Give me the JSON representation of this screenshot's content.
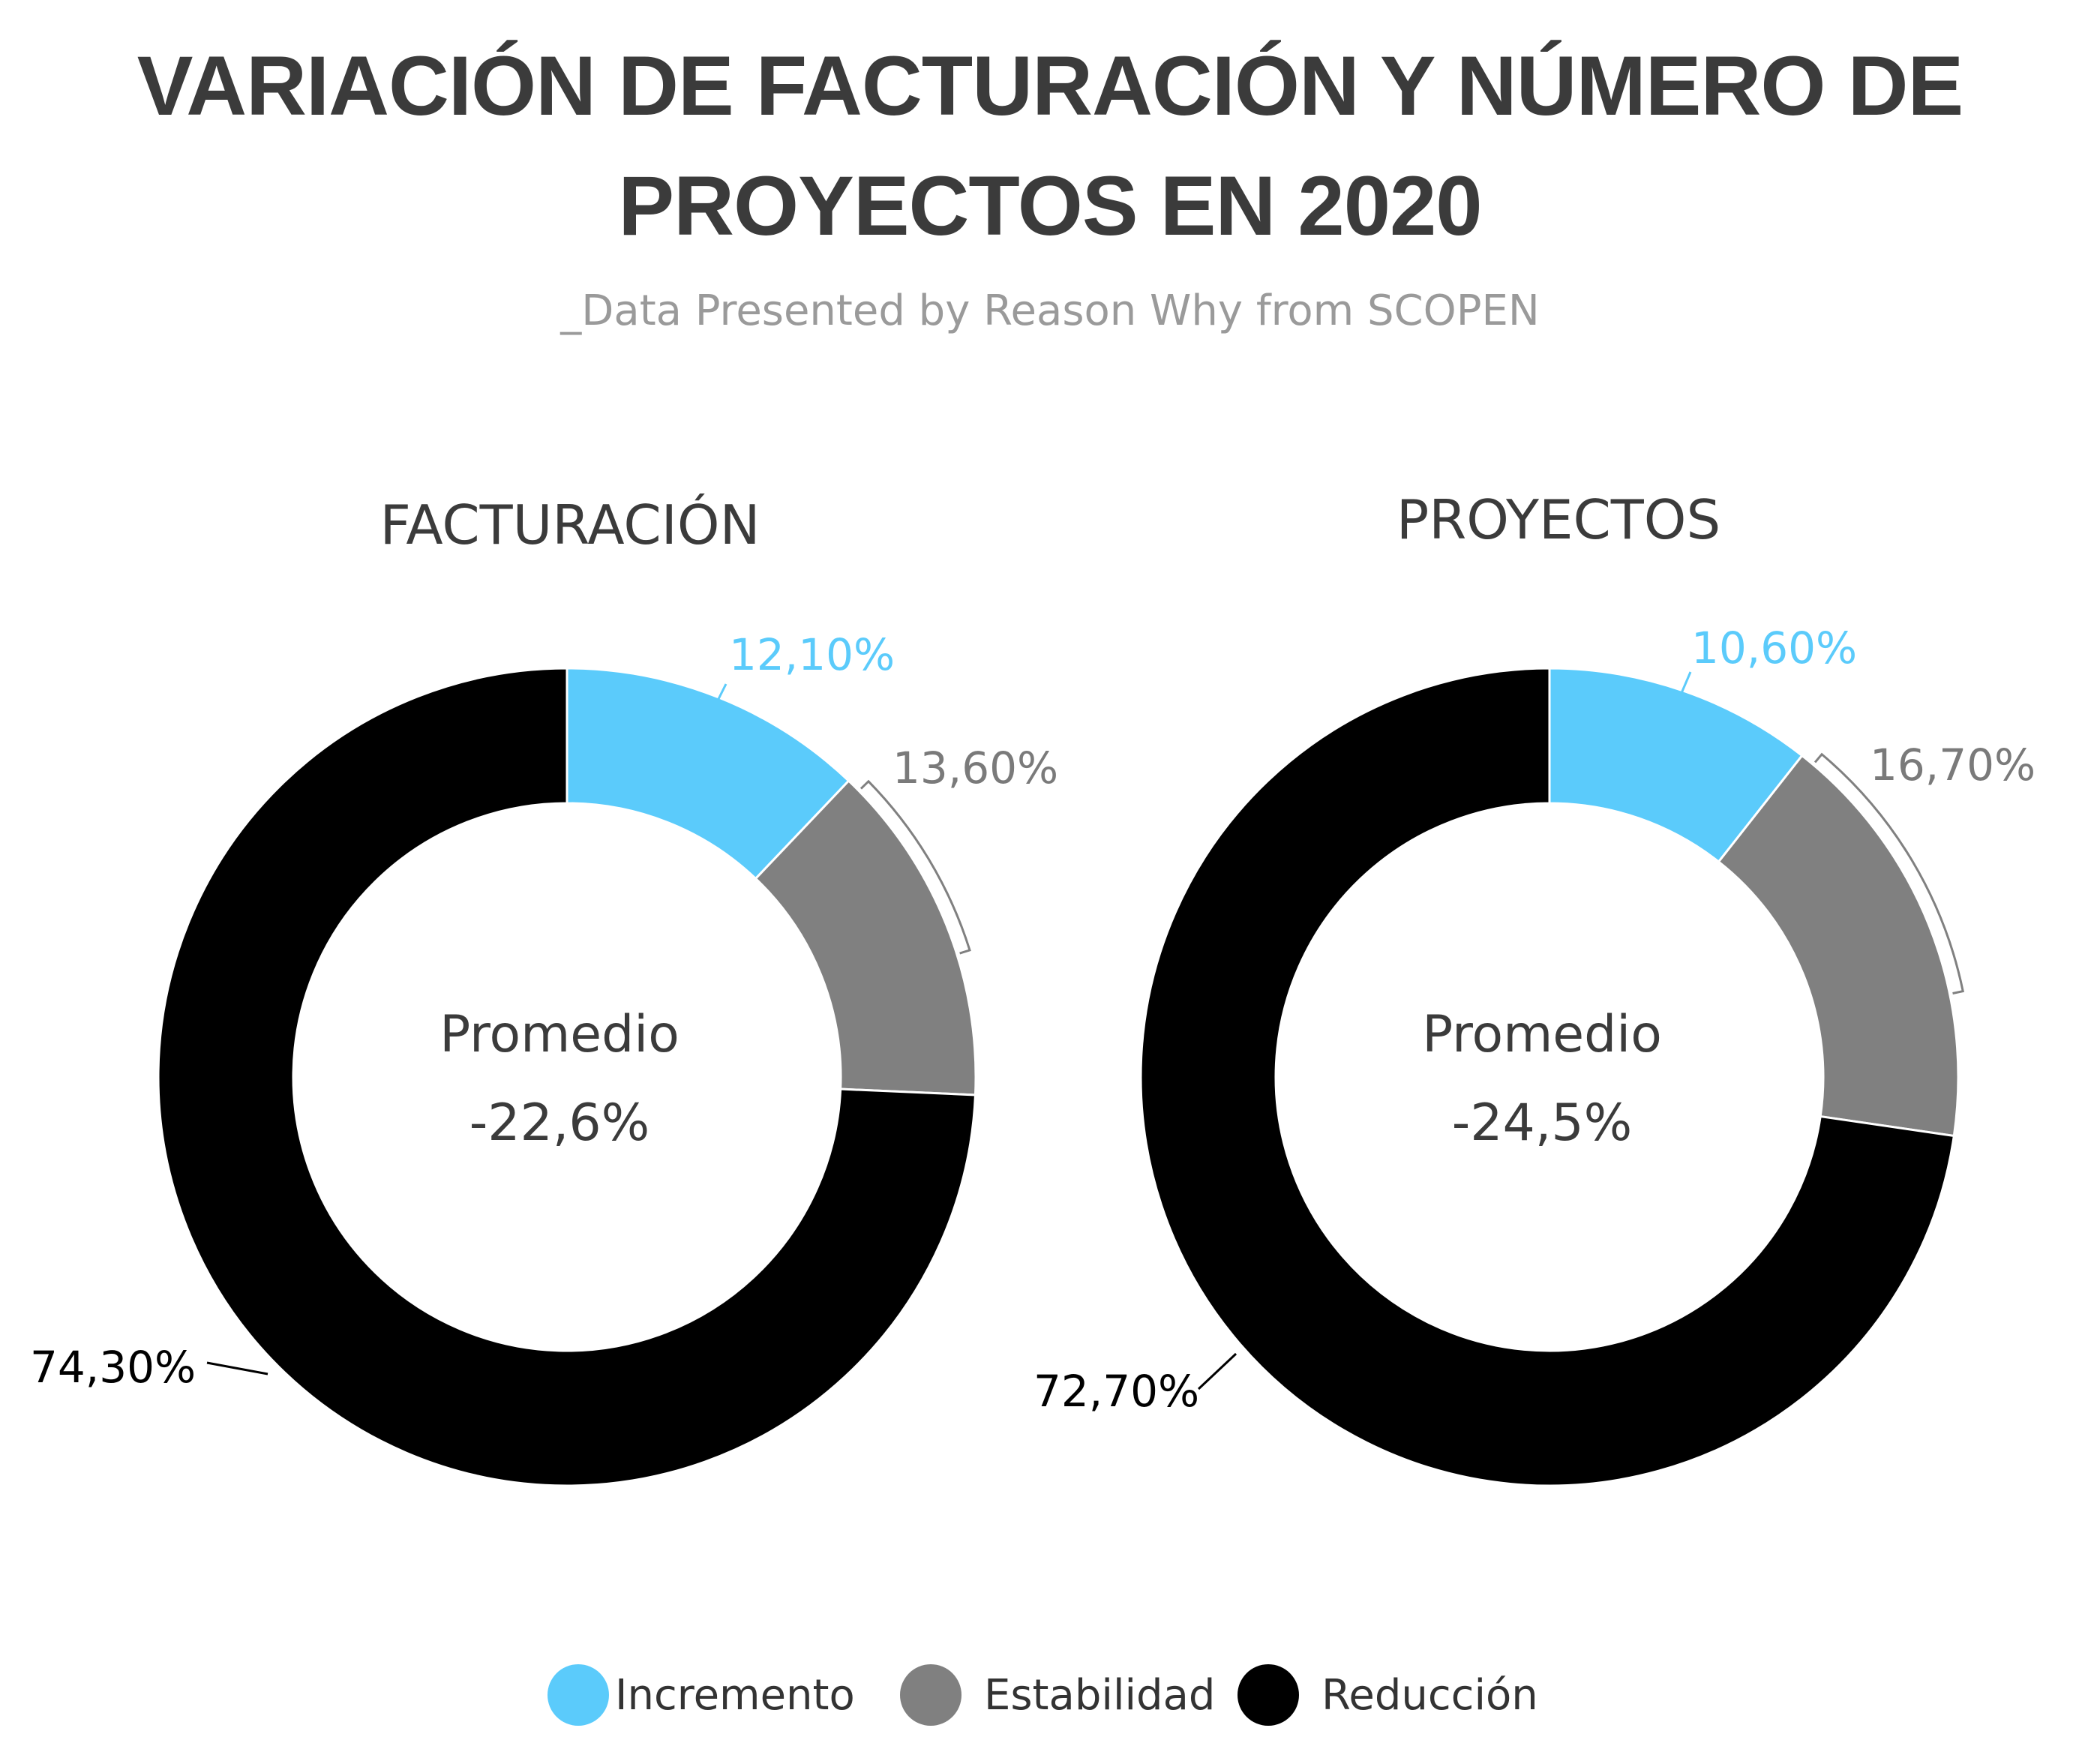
{
  "title_line1": "VARIACIÓN DE FACTURACIÓN Y NÚMERO DE",
  "title_line2": "PROYECTOS EN 2020",
  "subtitle": "_Data Presented by Reason Why from SCOPEN",
  "colors": {
    "incremento": "#5bcbfb",
    "estabilidad": "#808080",
    "reduccion": "#000000",
    "title": "#3b3b3b",
    "subtitle": "#9a9a9a"
  },
  "legend": [
    {
      "label": "Incremento",
      "color": "#5bcbfb"
    },
    {
      "label": "Estabilidad",
      "color": "#808080"
    },
    {
      "label": "Reducción",
      "color": "#000000"
    }
  ],
  "chart_data": [
    {
      "type": "pie",
      "title": "FACTURACIÓN",
      "center_label": "Promedio",
      "center_value": "-22,6%",
      "slices": [
        {
          "name": "Incremento",
          "value": 12.1,
          "label": "12,10%",
          "color": "#5bcbfb"
        },
        {
          "name": "Estabilidad",
          "value": 13.6,
          "label": "13,60%",
          "color": "#808080"
        },
        {
          "name": "Reducción",
          "value": 74.3,
          "label": "74,30%",
          "color": "#000000"
        }
      ]
    },
    {
      "type": "pie",
      "title": "PROYECTOS",
      "center_label": "Promedio",
      "center_value": "-24,5%",
      "slices": [
        {
          "name": "Incremento",
          "value": 10.6,
          "label": "10,60%",
          "color": "#5bcbfb"
        },
        {
          "name": "Estabilidad",
          "value": 16.7,
          "label": "16,70%",
          "color": "#808080"
        },
        {
          "name": "Reducción",
          "value": 72.7,
          "label": "72,70%",
          "color": "#000000"
        }
      ]
    }
  ]
}
